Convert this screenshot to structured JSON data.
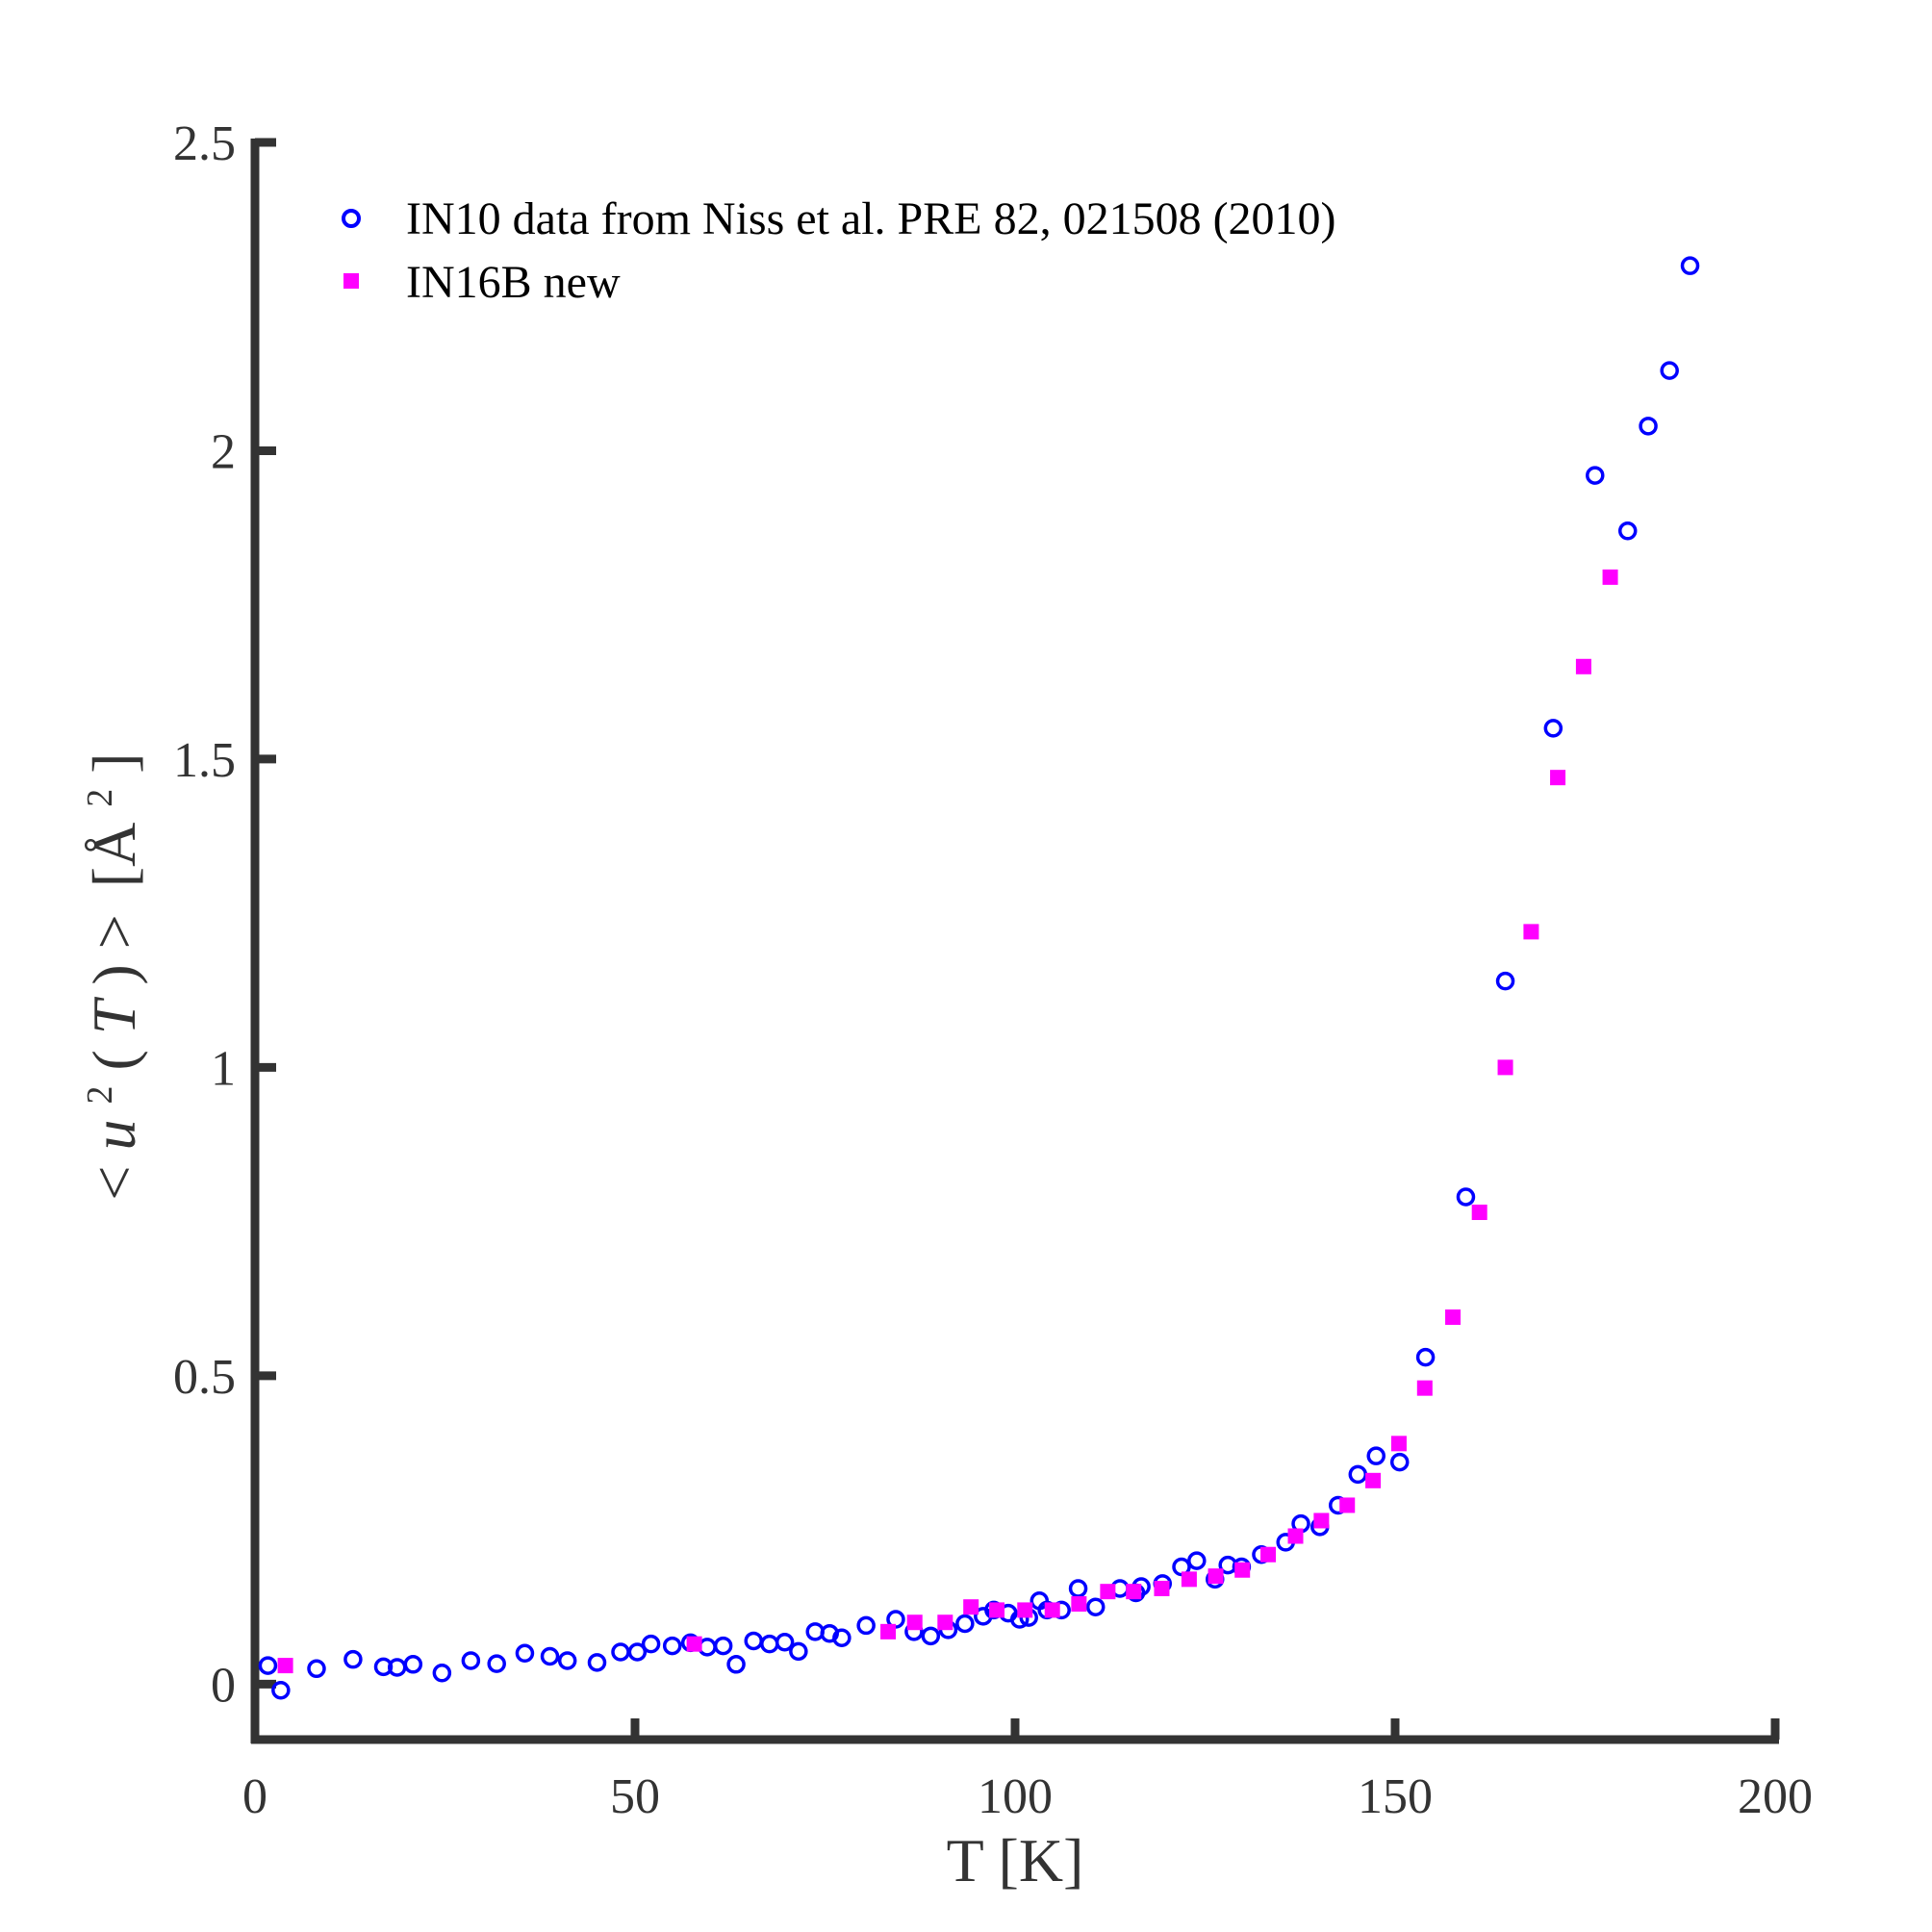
{
  "chart_data": {
    "type": "scatter",
    "title": "",
    "xlabel": "T [K]",
    "ylabel": {
      "lt": "<",
      "u": "u",
      "exp": "2",
      "paren_open": "(",
      "T": "T",
      "paren_close": ")",
      "gt": ">",
      "unit_open": "[Å",
      "unit_exp": "2",
      "unit_close": "]"
    },
    "xlim": [
      0,
      200
    ],
    "ylim": [
      -0.09,
      2.5
    ],
    "xticks": [
      0,
      50,
      100,
      150,
      200
    ],
    "yticks": [
      0,
      0.5,
      1,
      1.5,
      2,
      2.5
    ],
    "xtick_labels": [
      "0",
      "50",
      "100",
      "150",
      "200"
    ],
    "ytick_labels": [
      "0",
      "0.5",
      "1",
      "1.5",
      "2",
      "2.5"
    ],
    "grid": false,
    "legend_position": "top-left",
    "series": [
      {
        "name": "IN10 data from Niss et al. PRE 82, 021508 (2010)",
        "marker": "open-circle",
        "color": "#0000ff",
        "x": [
          1.7,
          3.4,
          8.1,
          12.9,
          16.9,
          18.7,
          20.8,
          24.6,
          28.4,
          31.8,
          35.5,
          38.8,
          41.1,
          45.0,
          48.1,
          50.3,
          52.1,
          54.9,
          57.3,
          59.5,
          61.6,
          63.3,
          65.6,
          67.7,
          69.7,
          71.5,
          73.7,
          75.6,
          77.2,
          80.4,
          84.3,
          86.7,
          88.9,
          91.2,
          93.4,
          95.8,
          97.2,
          99.1,
          100.6,
          101.8,
          103.2,
          104.2,
          106.1,
          108.3,
          110.6,
          113.8,
          115.9,
          116.6,
          119.4,
          121.9,
          123.9,
          126.3,
          128.0,
          129.8,
          132.4,
          135.6,
          137.6,
          140.1,
          142.5,
          145.1,
          147.5,
          150.6,
          154.0,
          159.3,
          164.5,
          170.8,
          176.3,
          180.6,
          183.3,
          186.1,
          188.8
        ],
        "y": [
          0.03,
          -0.01,
          0.025,
          0.04,
          0.028,
          0.027,
          0.032,
          0.018,
          0.038,
          0.033,
          0.05,
          0.045,
          0.038,
          0.035,
          0.052,
          0.052,
          0.065,
          0.062,
          0.067,
          0.06,
          0.062,
          0.032,
          0.07,
          0.065,
          0.068,
          0.053,
          0.085,
          0.082,
          0.075,
          0.095,
          0.105,
          0.085,
          0.078,
          0.088,
          0.098,
          0.11,
          0.12,
          0.115,
          0.105,
          0.108,
          0.135,
          0.12,
          0.12,
          0.155,
          0.125,
          0.155,
          0.148,
          0.158,
          0.163,
          0.19,
          0.2,
          0.17,
          0.193,
          0.19,
          0.21,
          0.23,
          0.26,
          0.255,
          0.29,
          0.34,
          0.37,
          0.36,
          0.53,
          0.79,
          1.14,
          1.55,
          1.96,
          1.87,
          2.04,
          2.13,
          2.3
        ]
      },
      {
        "name": "IN16B new",
        "marker": "filled-square",
        "color": "#ff00ff",
        "x": [
          4.0,
          57.8,
          83.3,
          86.8,
          90.8,
          94.2,
          97.6,
          101.3,
          104.9,
          108.4,
          112.2,
          115.6,
          119.3,
          122.9,
          126.4,
          129.9,
          133.3,
          136.9,
          140.3,
          143.7,
          147.1,
          150.5,
          153.9,
          157.6,
          161.1,
          164.5,
          167.9,
          171.4,
          174.8,
          178.3
        ],
        "y": [
          0.03,
          0.065,
          0.085,
          0.1,
          0.1,
          0.125,
          0.12,
          0.12,
          0.12,
          0.13,
          0.15,
          0.15,
          0.155,
          0.17,
          0.175,
          0.185,
          0.21,
          0.24,
          0.265,
          0.29,
          0.33,
          0.39,
          0.48,
          0.595,
          0.765,
          1.0,
          1.22,
          1.47,
          1.65,
          1.795
        ]
      }
    ]
  }
}
